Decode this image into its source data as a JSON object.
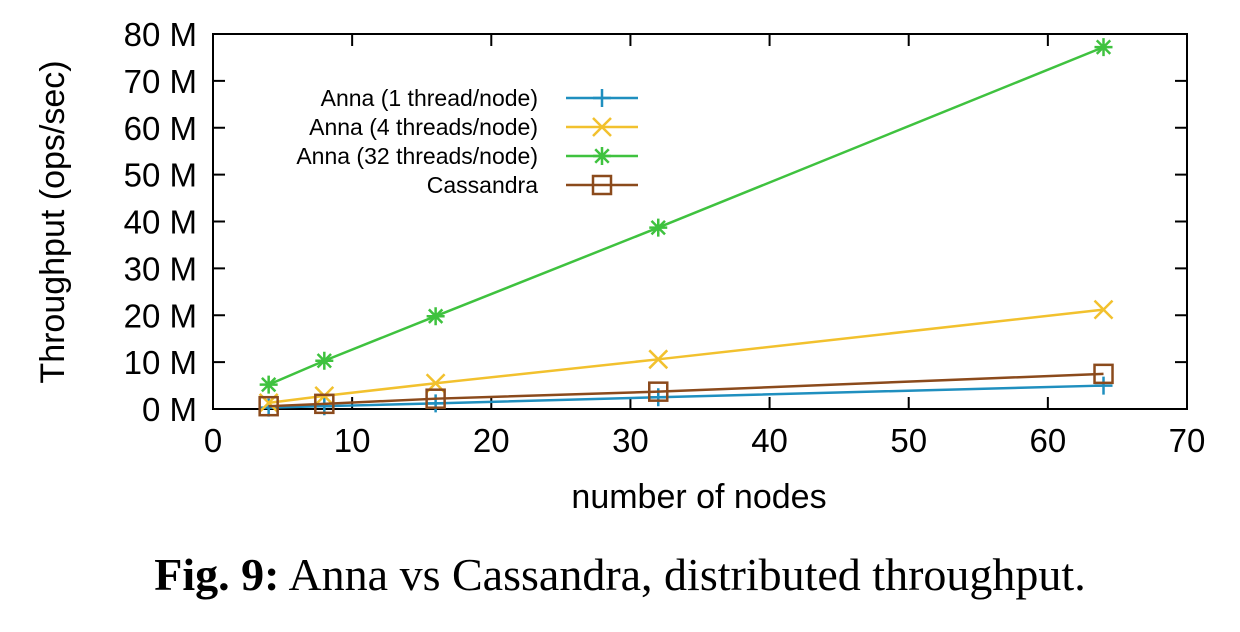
{
  "chart_data": {
    "type": "line",
    "title": "",
    "xlabel": "number of nodes",
    "ylabel": "Throughput (ops/sec)",
    "xlim": [
      0,
      70
    ],
    "ylim": [
      0,
      80
    ],
    "x_ticks": [
      "0",
      "10",
      "20",
      "30",
      "40",
      "50",
      "60",
      "70"
    ],
    "y_ticks": [
      "0 M",
      "10 M",
      "20 M",
      "30 M",
      "40 M",
      "50 M",
      "60 M",
      "70 M",
      "80 M"
    ],
    "grid": false,
    "legend_position": "top-left",
    "x": [
      4,
      8,
      16,
      32,
      64
    ],
    "series": [
      {
        "name": "Anna (1 thread/node)",
        "values": [
          0.3,
          0.6,
          1.2,
          2.5,
          5.0
        ],
        "color": "#1f8fbf",
        "marker": "plus"
      },
      {
        "name": "Anna (4 threads/node)",
        "values": [
          1.3,
          2.8,
          5.5,
          10.6,
          21.2
        ],
        "color": "#f2c12e",
        "marker": "cross"
      },
      {
        "name": "Anna (32 threads/node)",
        "values": [
          5.2,
          10.3,
          19.8,
          38.7,
          77.2
        ],
        "color": "#3fc23f",
        "marker": "star"
      },
      {
        "name": "Cassandra",
        "values": [
          0.6,
          1.1,
          2.2,
          3.7,
          7.5
        ],
        "color": "#8b4a1c",
        "marker": "square"
      }
    ]
  },
  "caption": {
    "label": "Fig. 9:",
    "text": " Anna vs Cassandra, distributed throughput."
  }
}
